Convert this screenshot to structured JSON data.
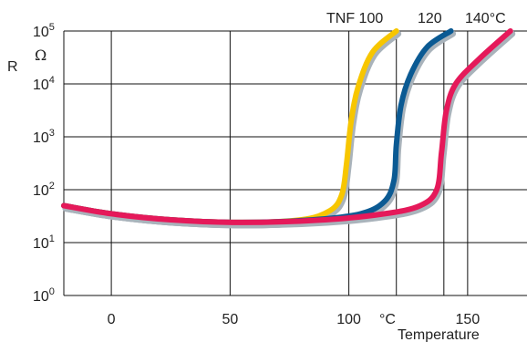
{
  "chart_data": {
    "type": "line",
    "title": "",
    "ylabel": "R",
    "yunit": "Ω",
    "xlabel": "Temperature",
    "xunit": "°C",
    "xlim": [
      -20,
      175
    ],
    "ylim": [
      1,
      100000
    ],
    "yscale": "log",
    "grid": true,
    "x_ticks": [
      0,
      50,
      100,
      150
    ],
    "y_ticks": [
      {
        "base": "10",
        "exp": "0",
        "value": 1
      },
      {
        "base": "10",
        "exp": "1",
        "value": 10
      },
      {
        "base": "10",
        "exp": "2",
        "value": 100
      },
      {
        "base": "10",
        "exp": "3",
        "value": 1000
      },
      {
        "base": "10",
        "exp": "4",
        "value": 10000
      },
      {
        "base": "10",
        "exp": "5",
        "value": 100000
      }
    ],
    "series_labels": [
      "TNF 100",
      "120",
      "140°C"
    ],
    "series": [
      {
        "name": "TNF 100",
        "color": "#f7c600",
        "points": [
          [
            -20,
            50
          ],
          [
            0,
            35
          ],
          [
            25,
            27
          ],
          [
            55,
            24
          ],
          [
            80,
            27
          ],
          [
            92,
            40
          ],
          [
            97,
            80
          ],
          [
            99,
            300
          ],
          [
            101,
            2000
          ],
          [
            104,
            9000
          ],
          [
            110,
            40000
          ],
          [
            120,
            100000
          ]
        ]
      },
      {
        "name": "120",
        "color": "#0b5a93",
        "points": [
          [
            -20,
            50
          ],
          [
            0,
            35
          ],
          [
            25,
            27
          ],
          [
            55,
            24
          ],
          [
            85,
            27
          ],
          [
            105,
            35
          ],
          [
            115,
            60
          ],
          [
            119,
            150
          ],
          [
            120,
            700
          ],
          [
            122,
            4000
          ],
          [
            126,
            15000
          ],
          [
            133,
            50000
          ],
          [
            143,
            100000
          ]
        ]
      },
      {
        "name": "140°C",
        "color": "#e5195a",
        "points": [
          [
            -20,
            50
          ],
          [
            0,
            35
          ],
          [
            25,
            27
          ],
          [
            55,
            24
          ],
          [
            90,
            27
          ],
          [
            115,
            35
          ],
          [
            130,
            50
          ],
          [
            137,
            100
          ],
          [
            139,
            500
          ],
          [
            141,
            3000
          ],
          [
            145,
            10000
          ],
          [
            155,
            30000
          ],
          [
            168,
            100000
          ]
        ]
      }
    ]
  }
}
